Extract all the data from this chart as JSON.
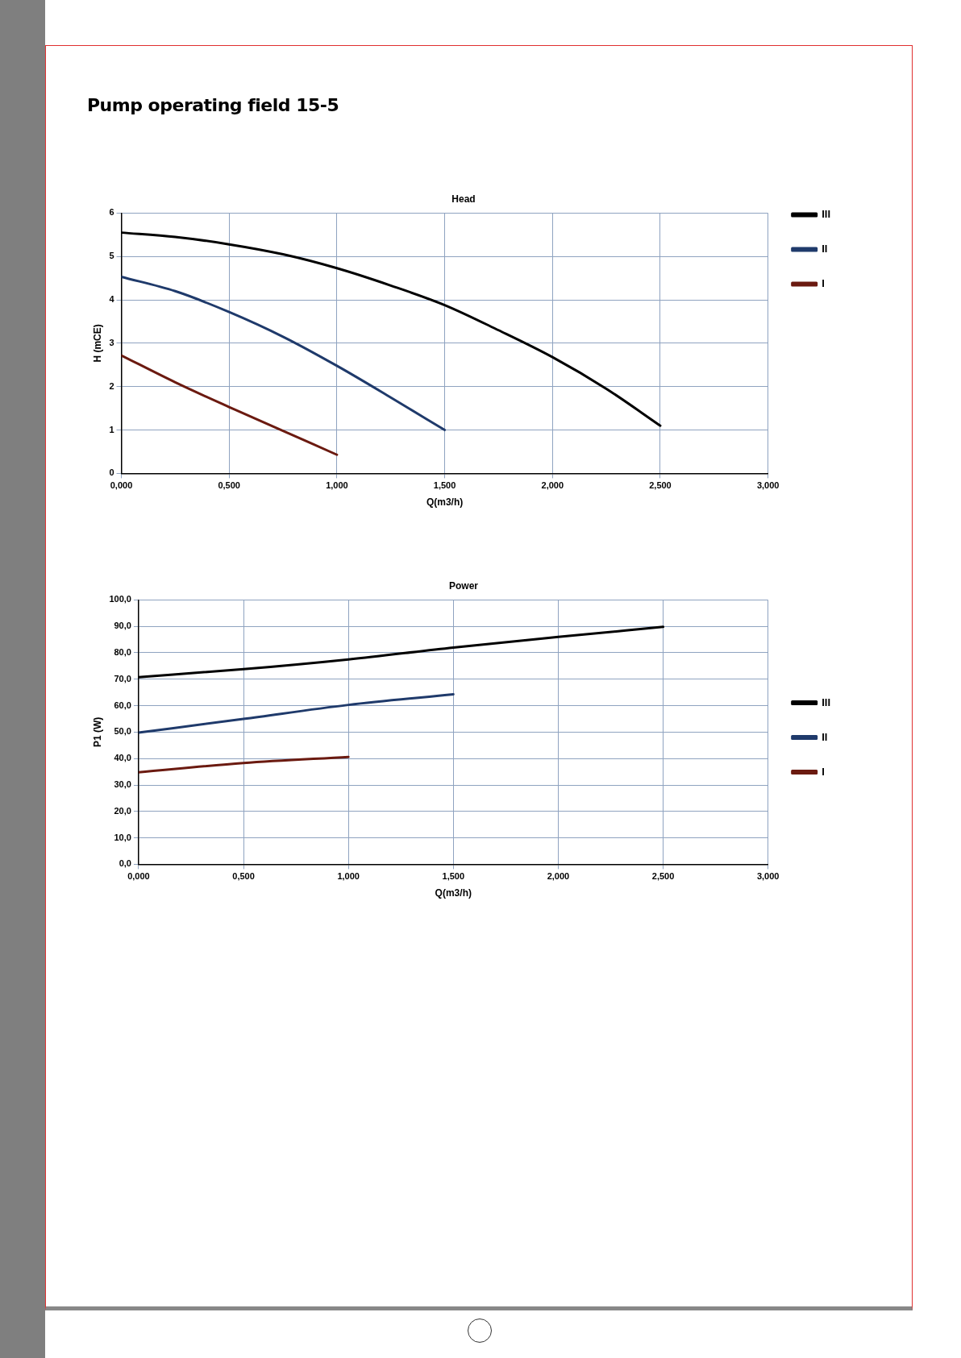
{
  "chart_data": [
    {
      "type": "line",
      "title": "Head",
      "xlabel": "Q(m3/h)",
      "ylabel": "H (mCE)",
      "annotations": [
        "Pump operating field 15-5"
      ],
      "xlim": [
        0,
        3
      ],
      "xticks": [
        {
          "value": 0,
          "label": "0,000"
        },
        {
          "value": 0.5,
          "label": "0,500"
        },
        {
          "value": 1,
          "label": "1,000"
        },
        {
          "value": 1.5,
          "label": "1,500"
        },
        {
          "value": 2,
          "label": "2,000"
        },
        {
          "value": 2.5,
          "label": "2,500"
        },
        {
          "value": 3,
          "label": "3,000"
        }
      ],
      "ylim": [
        0,
        6
      ],
      "yticks": [
        0,
        1,
        2,
        3,
        4,
        5,
        6
      ],
      "grid": true,
      "legend": "top right",
      "marker": "none",
      "line_style": "solid",
      "series": [
        {
          "name": "III",
          "color": "#000000",
          "x": [
            0,
            0.25,
            0.5,
            0.75,
            1,
            1.25,
            1.5,
            1.75,
            2,
            2.25,
            2.5
          ],
          "values": [
            5.55,
            5.45,
            5.28,
            5.05,
            4.73,
            4.33,
            3.88,
            3.3,
            2.68,
            1.95,
            1.1
          ]
        },
        {
          "name": "II",
          "color": "#1f3a6b",
          "x": [
            0,
            0.25,
            0.5,
            0.75,
            1,
            1.25,
            1.5
          ],
          "values": [
            4.53,
            4.2,
            3.72,
            3.15,
            2.48,
            1.75,
            1.0
          ]
        },
        {
          "name": "I",
          "color": "#6b1a10",
          "x": [
            0,
            0.25,
            0.5,
            0.75,
            1
          ],
          "values": [
            2.72,
            2.1,
            1.53,
            0.98,
            0.43
          ]
        }
      ]
    },
    {
      "type": "line",
      "title": "Power",
      "xlabel": "Q(m3/h)",
      "ylabel": "P1 (W)",
      "xlim": [
        0,
        3
      ],
      "xticks": [
        {
          "value": 0,
          "label": "0,000"
        },
        {
          "value": 0.5,
          "label": "0,500"
        },
        {
          "value": 1,
          "label": "1,000"
        },
        {
          "value": 1.5,
          "label": "1,500"
        },
        {
          "value": 2,
          "label": "2,000"
        },
        {
          "value": 2.5,
          "label": "2,500"
        },
        {
          "value": 3,
          "label": "3,000"
        }
      ],
      "ylim": [
        0,
        100
      ],
      "yticks": [
        {
          "value": 0,
          "label": "0,0"
        },
        {
          "value": 10,
          "label": "10,0"
        },
        {
          "value": 20,
          "label": "20,0"
        },
        {
          "value": 30,
          "label": "30,0"
        },
        {
          "value": 40,
          "label": "40,0"
        },
        {
          "value": 50,
          "label": "50,0"
        },
        {
          "value": 60,
          "label": "60,0"
        },
        {
          "value": 70,
          "label": "70,0"
        },
        {
          "value": 80,
          "label": "80,0"
        },
        {
          "value": 90,
          "label": "90,0"
        },
        {
          "value": 100,
          "label": "100,0"
        }
      ],
      "grid": true,
      "legend": "right",
      "marker": "none",
      "line_style": "solid",
      "series": [
        {
          "name": "III",
          "color": "#000000",
          "x": [
            0,
            0.5,
            1,
            1.5,
            2,
            2.5
          ],
          "values": [
            70.8,
            73.8,
            77.5,
            82,
            86,
            89.8
          ]
        },
        {
          "name": "II",
          "color": "#1f3a6b",
          "x": [
            0,
            0.5,
            1,
            1.5
          ],
          "values": [
            49.8,
            55,
            60.3,
            64.3
          ]
        },
        {
          "name": "I",
          "color": "#6b1a10",
          "x": [
            0,
            0.5,
            1
          ],
          "values": [
            34.8,
            38.3,
            40.6
          ]
        }
      ]
    }
  ]
}
